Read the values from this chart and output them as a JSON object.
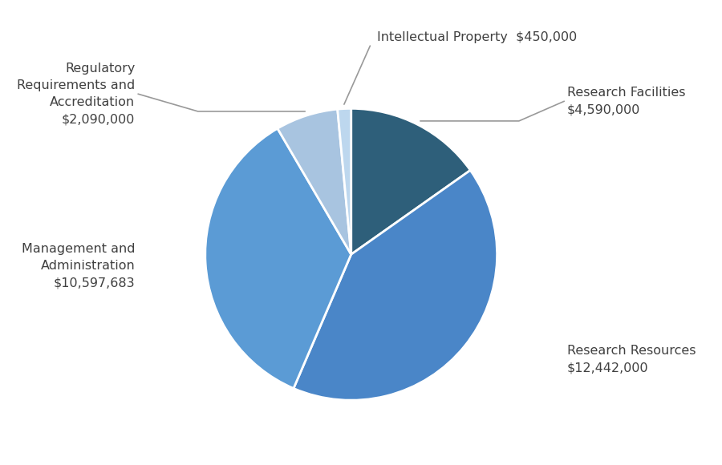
{
  "slices": [
    {
      "label": "Research Facilities",
      "value": 4590000,
      "color": "#2E5F7A"
    },
    {
      "label": "Research Resources",
      "value": 12442000,
      "color": "#4A86C8"
    },
    {
      "label": "Management and\nAdministration",
      "value": 10597683,
      "color": "#5B9BD5"
    },
    {
      "label": "Regulatory\nRequirements and\nAccreditation",
      "value": 2090000,
      "color": "#A8C4E0"
    },
    {
      "label": "Intellectual Property",
      "value": 450000,
      "color": "#BDD7EE"
    }
  ],
  "background_color": "#FFFFFF",
  "wedge_edge_color": "#FFFFFF",
  "wedge_linewidth": 2.0,
  "startangle": 90,
  "connector_color": "#999999",
  "text_color": "#404040",
  "fontsize": 11.5
}
